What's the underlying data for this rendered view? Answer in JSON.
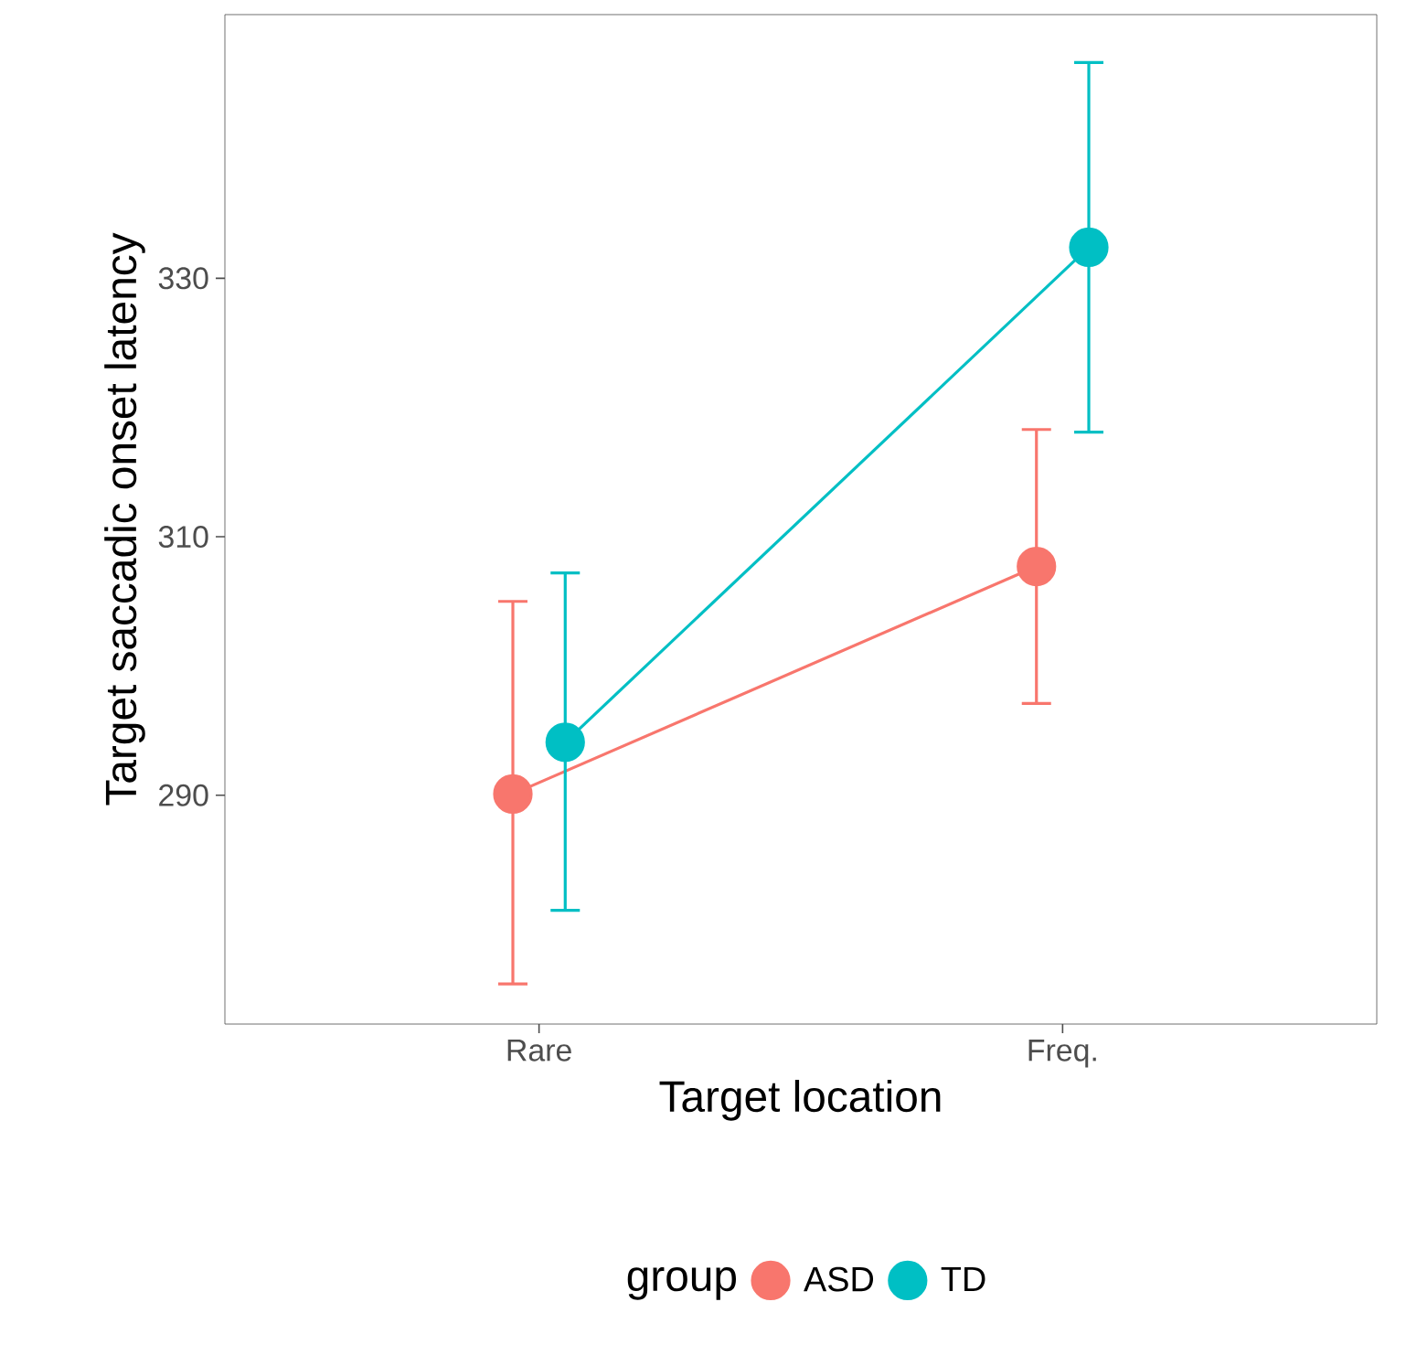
{
  "chart_data": {
    "type": "line",
    "xlabel": "Target location",
    "ylabel": "Target saccadic onset latency",
    "legend_title": "group",
    "categories": [
      "Rare",
      "Freq."
    ],
    "series": [
      {
        "name": "ASD",
        "color": "#f8766d",
        "values": [
          290.1,
          307.7
        ],
        "errors": [
          [
            275.4,
            305.0
          ],
          [
            297.1,
            318.3
          ]
        ]
      },
      {
        "name": "TD",
        "color": "#00bfc4",
        "values": [
          294.1,
          332.4
        ],
        "errors": [
          [
            281.1,
            307.2
          ],
          [
            318.1,
            346.7
          ]
        ]
      }
    ],
    "ylim": [
      272.3,
      350.4
    ],
    "yticks": [
      290,
      310,
      330
    ],
    "grid": false,
    "legend": "bottom",
    "marker": "circle",
    "line_style": "solid"
  }
}
